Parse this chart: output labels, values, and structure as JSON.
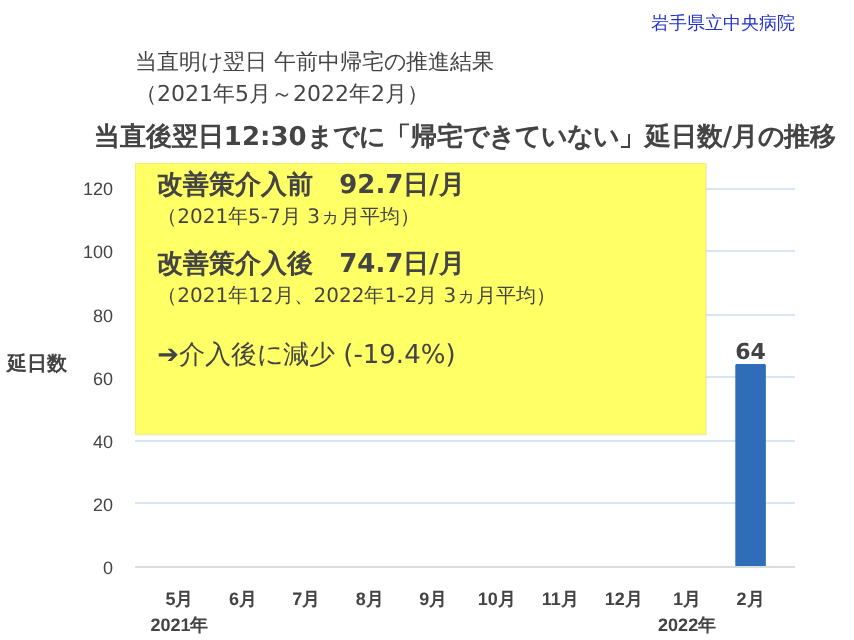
{
  "chart_data": {
    "type": "bar",
    "title": "当直後翌日12:30までに「帰宅できていない」延日数/月の推移",
    "subtitle": "当直明け翌日 午前中帰宅の推進結果",
    "ylabel": "延日数",
    "categories": [
      "5月\n2021年",
      "6月",
      "7月",
      "8月",
      "9月",
      "10月",
      "11月",
      "12月",
      "1月\n2022年",
      "2月"
    ],
    "values": [
      null,
      null,
      null,
      null,
      null,
      null,
      null,
      null,
      null,
      64
    ],
    "value_labels": [
      null,
      null,
      null,
      null,
      null,
      null,
      null,
      null,
      null,
      "64"
    ],
    "color": "#2f6db8",
    "ylim": [
      0,
      128
    ],
    "yticks": [
      0,
      20,
      40,
      60,
      80,
      100,
      120
    ],
    "grid": "y",
    "annotations": [
      "岩手県立中央病院",
      "（2021年5月～2022年2月）",
      "改善策介入前　92.7日/月",
      "（2021年5-7月 3ヵ月平均）",
      "改善策介入後　74.7日/月",
      "（2021年12月、2022年1-2月 3ヵ月平均）",
      "➔介入後に減少 (-19.4%)"
    ]
  }
}
